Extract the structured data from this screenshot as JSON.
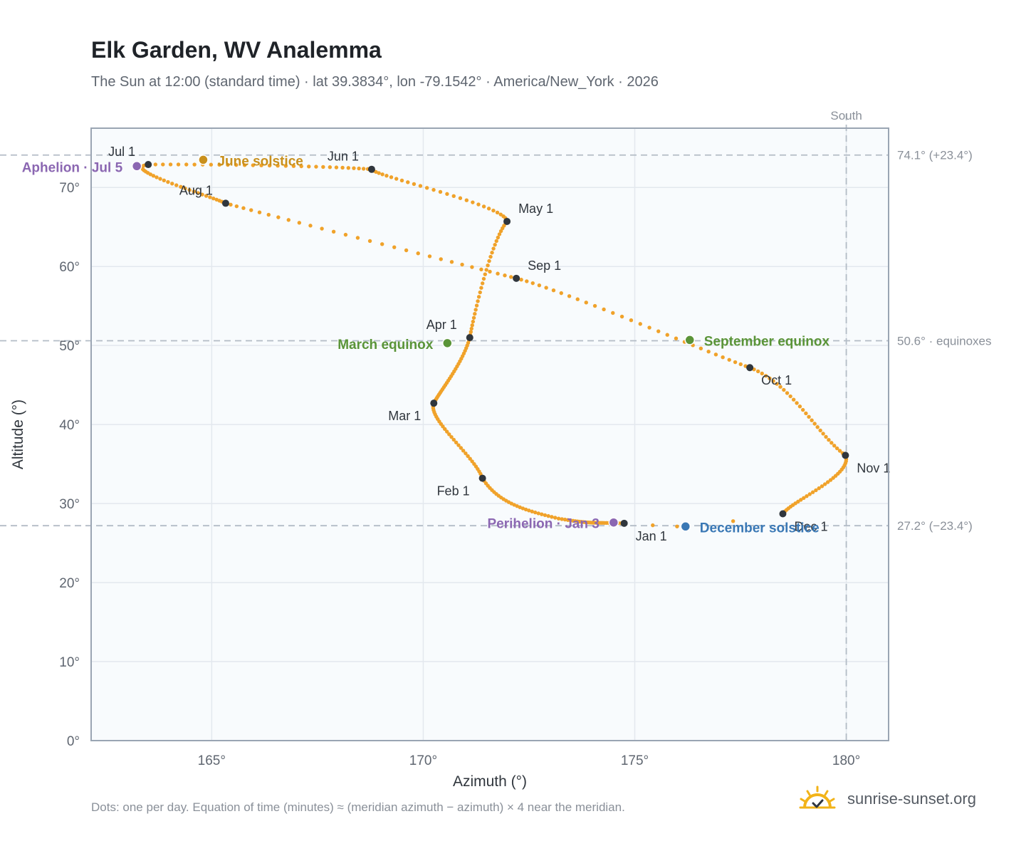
{
  "header": {
    "title": "Elk Garden, WV Analemma",
    "subtitle": "The Sun at 12:00 (standard time) · lat 39.3834°, lon -79.1542° · America/New_York · 2026"
  },
  "footer": {
    "note": "Dots: one per day. Equation of time (minutes) ≈ (meridian azimuth − azimuth) × 4 near the meridian.",
    "brand": "sunrise-sunset.org",
    "brand_icon": "sun-horizon-icon"
  },
  "colors": {
    "path": "#f0a22a",
    "month_marker": "#30363d",
    "solstice_june": "#c9901c",
    "equinox": "#5a9438",
    "solstice_december": "#3a78b5",
    "apsis": "#8b67b2",
    "reference_line": "#b3bcc6",
    "plot_background": "#f8fbfd",
    "grid": "#e3e8ee",
    "frame": "#9aa5b3"
  },
  "chart_data": {
    "type": "scatter",
    "xlabel": "Azimuth (°)",
    "ylabel": "Altitude (°)",
    "xlim": [
      162.15,
      181.0
    ],
    "ylim": [
      0,
      77.5
    ],
    "x_ticks": [
      165,
      170,
      175,
      180
    ],
    "x_tick_labels": [
      "165°",
      "170°",
      "175°",
      "180°"
    ],
    "y_ticks": [
      0,
      10,
      20,
      30,
      40,
      50,
      60,
      70
    ],
    "y_tick_labels": [
      "0°",
      "10°",
      "20°",
      "30°",
      "40°",
      "50°",
      "60°",
      "70°"
    ],
    "grid": true,
    "series": [
      {
        "kind": "daily_path",
        "points": [
          [
            174.75,
            27.5
          ],
          [
            173.2,
            28.1
          ],
          [
            171.4,
            33.2
          ],
          [
            170.25,
            42.7
          ],
          [
            171.1,
            51.0
          ],
          [
            171.98,
            65.7
          ],
          [
            168.78,
            72.3
          ],
          [
            163.5,
            72.9
          ],
          [
            165.33,
            68.0
          ],
          [
            172.2,
            58.5
          ],
          [
            177.72,
            47.2
          ],
          [
            179.98,
            36.1
          ],
          [
            178.5,
            28.7
          ],
          [
            176.0,
            27.1
          ],
          [
            174.75,
            27.5
          ]
        ],
        "tangents": [
          [
            [
              -2.3,
              0.42
            ],
            [
              -2.5,
              2.2
            ]
          ],
          [
            [
              -2.3,
              3.0
            ],
            [
              -1.1,
              9.5
            ]
          ],
          [
            [
              -0.55,
              8.4
            ],
            [
              0.5,
              6.0
            ]
          ],
          [
            [
              0.38,
              4.2
            ],
            [
              0.5,
              10.0
            ]
          ],
          [
            [
              0.35,
              10.2
            ],
            [
              1.1,
              7.2
            ]
          ],
          [
            [
              0.05,
              6.0
            ],
            [
              -0.15,
              2.5
            ]
          ],
          [
            [
              -2.6,
              1.1
            ],
            [
              -5.2,
              -0.2
            ]
          ],
          [
            [
              -2.2,
              -1.5
            ],
            [
              1.0,
              -2.6
            ]
          ],
          [
            [
              3.2,
              -4.8
            ],
            [
              3.4,
              -4.6
            ]
          ],
          [
            [
              3.4,
              -4.6
            ],
            [
              2.9,
              -5.5
            ]
          ],
          [
            [
              3.0,
              -6.2
            ],
            [
              2.0,
              -7.8
            ]
          ],
          [
            [
              0.6,
              -7.6
            ],
            [
              -0.6,
              -4.9
            ]
          ],
          [
            [
              -0.9,
              -2.4
            ],
            [
              -1.5,
              -1.4
            ]
          ],
          [
            [
              -0.9,
              -0.1
            ],
            [
              -1.3,
              0.3
            ]
          ]
        ],
        "samples_per_segment": [
          31,
          28,
          31,
          30,
          31,
          30,
          31,
          31,
          30,
          31,
          30,
          31,
          2,
          2
        ]
      }
    ],
    "month_markers": [
      {
        "label": "Jan 1",
        "az": 174.75,
        "alt": 27.5,
        "pos": "below-right"
      },
      {
        "label": "Feb 1",
        "az": 171.4,
        "alt": 33.2,
        "pos": "below-left"
      },
      {
        "label": "Mar 1",
        "az": 170.25,
        "alt": 42.7,
        "pos": "below-left"
      },
      {
        "label": "Apr 1",
        "az": 171.1,
        "alt": 51.0,
        "pos": "above-left"
      },
      {
        "label": "May 1",
        "az": 171.98,
        "alt": 65.7,
        "pos": "above-right"
      },
      {
        "label": "Jun 1",
        "az": 168.78,
        "alt": 72.3,
        "pos": "above-left"
      },
      {
        "label": "Jul 1",
        "az": 163.5,
        "alt": 72.9,
        "pos": "above-left"
      },
      {
        "label": "Aug 1",
        "az": 165.33,
        "alt": 68.0,
        "pos": "above-left"
      },
      {
        "label": "Sep 1",
        "az": 172.2,
        "alt": 58.5,
        "pos": "above-right"
      },
      {
        "label": "Oct 1",
        "az": 177.72,
        "alt": 47.2,
        "pos": "below-right"
      },
      {
        "label": "Nov 1",
        "az": 179.98,
        "alt": 36.1,
        "pos": "below-right"
      },
      {
        "label": "Dec 1",
        "az": 178.5,
        "alt": 28.7,
        "pos": "below-right"
      }
    ],
    "events": [
      {
        "label": "June solstice",
        "az": 164.8,
        "alt": 73.5,
        "color": "#c9901c",
        "anchor": "right"
      },
      {
        "label": "March equinox",
        "az": 170.57,
        "alt": 50.3,
        "color": "#5a9438",
        "anchor": "left"
      },
      {
        "label": "September equinox",
        "az": 176.3,
        "alt": 50.7,
        "color": "#5a9438",
        "anchor": "right"
      },
      {
        "label": "December solstice",
        "az": 176.2,
        "alt": 27.1,
        "color": "#3a78b5",
        "anchor": "right"
      },
      {
        "label": "Aphelion · Jul 5",
        "az": 163.23,
        "alt": 72.7,
        "color": "#8b67b2",
        "anchor": "left"
      },
      {
        "label": "Perihelion · Jan 3",
        "az": 174.5,
        "alt": 27.6,
        "color": "#8b67b2",
        "anchor": "left"
      }
    ],
    "reference_lines": [
      {
        "orientation": "horizontal",
        "value": 74.1,
        "label": "74.1° (+23.4°)"
      },
      {
        "orientation": "horizontal",
        "value": 50.6,
        "label": "50.6° · equinoxes"
      },
      {
        "orientation": "horizontal",
        "value": 27.2,
        "label": "27.2° (−23.4°)"
      },
      {
        "orientation": "vertical",
        "value": 180,
        "label": "South"
      }
    ]
  }
}
